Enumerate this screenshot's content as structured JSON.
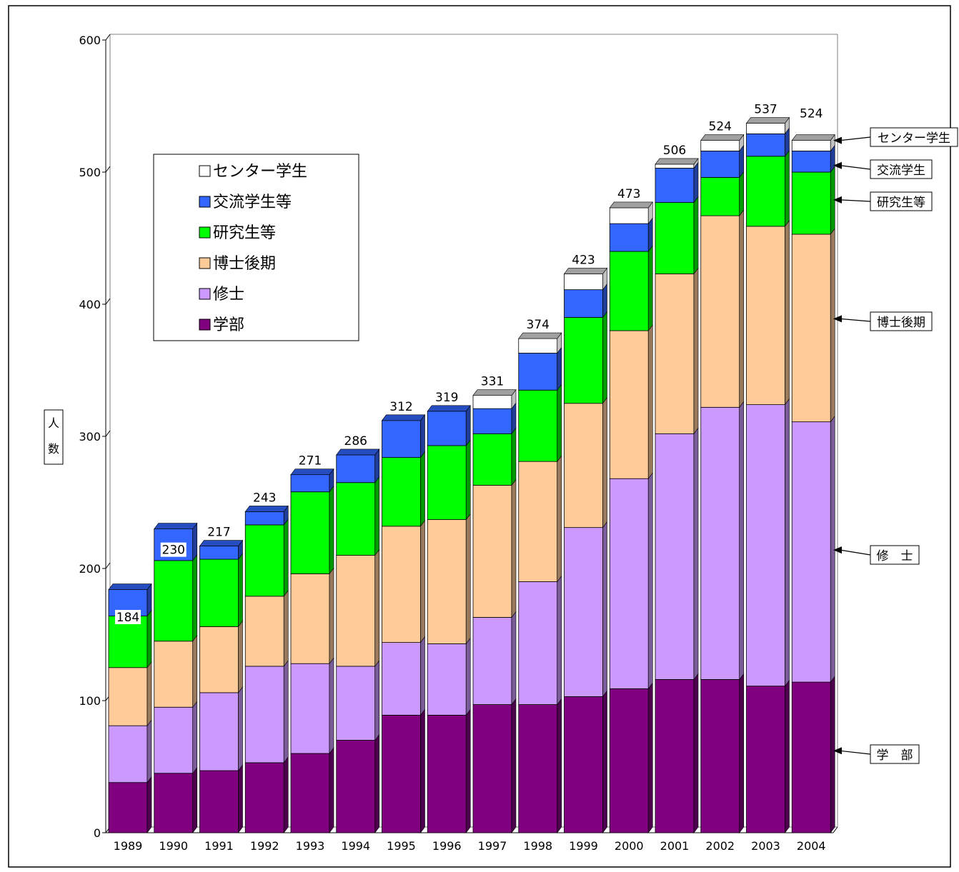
{
  "chart_data": {
    "type": "bar",
    "stacked": true,
    "categories": [
      "1989",
      "1990",
      "1991",
      "1992",
      "1993",
      "1994",
      "1995",
      "1996",
      "1997",
      "1998",
      "1999",
      "2000",
      "2001",
      "2002",
      "2003",
      "2004"
    ],
    "ylabel": "人数",
    "ylim": [
      0,
      600
    ],
    "yticks": [
      0,
      100,
      200,
      300,
      400,
      500,
      600
    ],
    "grid": false,
    "legend_position": "upper-left",
    "series": [
      {
        "name": "学部",
        "color": "#800080",
        "values": [
          38,
          45,
          47,
          53,
          60,
          70,
          89,
          89,
          97,
          97,
          103,
          109,
          116,
          116,
          111,
          114
        ]
      },
      {
        "name": "修士",
        "color": "#cc99ff",
        "values": [
          43,
          50,
          59,
          73,
          68,
          56,
          55,
          54,
          66,
          93,
          128,
          159,
          186,
          206,
          213,
          197
        ]
      },
      {
        "name": "博士後期",
        "color": "#ffcc99",
        "values": [
          44,
          50,
          50,
          53,
          68,
          84,
          88,
          94,
          100,
          91,
          94,
          112,
          121,
          145,
          135,
          142
        ]
      },
      {
        "name": "研究生等",
        "color": "#00ff00",
        "values": [
          39,
          61,
          51,
          54,
          62,
          55,
          52,
          56,
          39,
          54,
          65,
          60,
          54,
          29,
          53,
          47
        ]
      },
      {
        "name": "交流学生等",
        "color": "#3366ff",
        "values": [
          20,
          24,
          10,
          10,
          13,
          21,
          28,
          26,
          19,
          28,
          21,
          21,
          26,
          20,
          17,
          16
        ]
      },
      {
        "name": "センター学生",
        "color": "#ffffff",
        "values": [
          0,
          0,
          0,
          0,
          0,
          0,
          0,
          0,
          10,
          11,
          12,
          12,
          3,
          8,
          8,
          8
        ]
      }
    ],
    "totals": [
      184,
      230,
      217,
      243,
      271,
      286,
      312,
      319,
      331,
      374,
      423,
      473,
      506,
      524,
      537,
      524
    ],
    "legend_entries": [
      "センター学生",
      "交流学生等",
      "研究生等",
      "博士後期",
      "修士",
      "学部"
    ],
    "side_labels": [
      {
        "text": "センター学生",
        "series": "センター学生",
        "value": 524
      },
      {
        "text": "交流学生",
        "series": "交流学生等",
        "value": 505
      },
      {
        "text": "研究生等",
        "series": "研究生等",
        "value": 479
      },
      {
        "text": "博士後期",
        "series": "博士後期",
        "value": 389
      },
      {
        "text": "修　士",
        "series": "修士",
        "value": 214
      },
      {
        "text": "学　部",
        "series": "学部",
        "value": 62
      }
    ]
  }
}
